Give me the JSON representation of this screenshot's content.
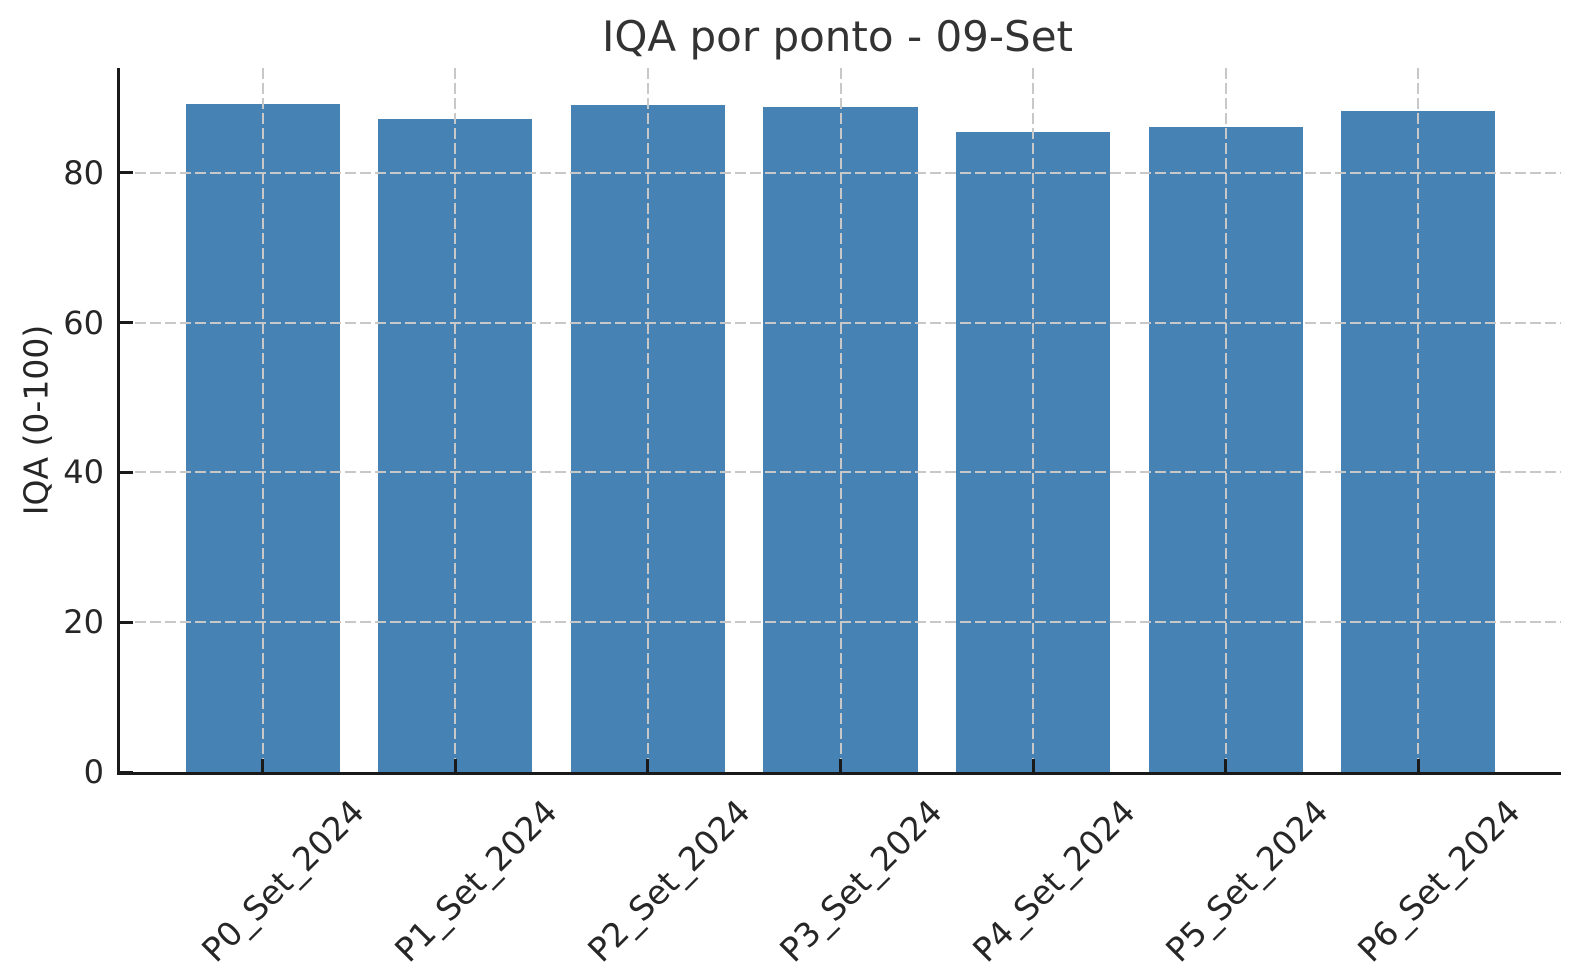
{
  "chart_data": {
    "type": "bar",
    "title": "IQA por ponto - 09-Set",
    "xlabel": "",
    "ylabel": "IQA (0-100)",
    "categories": [
      "P0_Set_2024",
      "P1_Set_2024",
      "P2_Set_2024",
      "P3_Set_2024",
      "P4_Set_2024",
      "P5_Set_2024",
      "P6_Set_2024"
    ],
    "values": [
      89.2,
      87.2,
      89.1,
      88.8,
      85.4,
      86.1,
      88.3
    ],
    "yticks": [
      0,
      20,
      40,
      60,
      80
    ],
    "ylim": [
      0,
      94
    ],
    "grid": true,
    "grid_style": "dashed",
    "legend": "none",
    "bar_color": "#4682b4",
    "grid_color": "#c8c8c8",
    "axis_color": "#1a1a1a",
    "text_color": "#262626",
    "title_color": "#333333"
  }
}
